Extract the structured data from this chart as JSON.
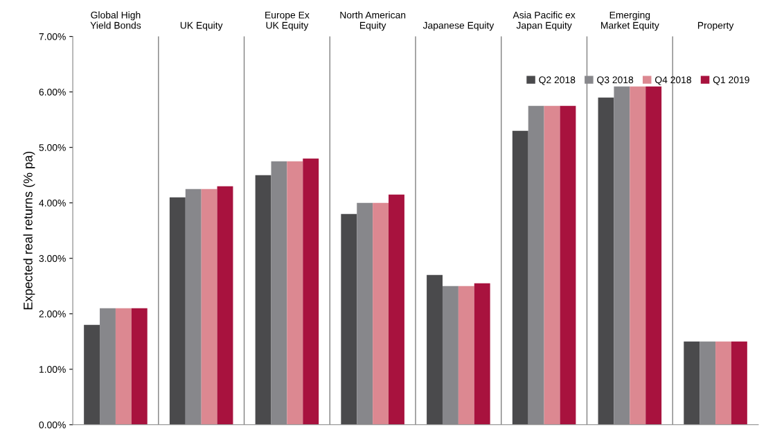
{
  "chart_data": {
    "type": "bar",
    "ylabel": "Expected real returns (% pa)",
    "categories": [
      "Global High Yield Bonds",
      "UK Equity",
      "Europe Ex UK Equity",
      "North American Equity",
      "Japanese Equity",
      "Asia Pacific ex Japan Equity",
      "Emerging Market Equity",
      "Property"
    ],
    "series": [
      {
        "name": "Q2 2018",
        "color": "#4a4a4c",
        "values": [
          1.8,
          4.1,
          4.5,
          3.8,
          2.7,
          5.3,
          5.9,
          1.5
        ]
      },
      {
        "name": "Q3 2018",
        "color": "#87878b",
        "values": [
          2.1,
          4.25,
          4.75,
          4.0,
          2.5,
          5.75,
          6.1,
          1.5
        ]
      },
      {
        "name": "Q4 2018",
        "color": "#dc8891",
        "values": [
          2.1,
          4.25,
          4.75,
          4.0,
          2.5,
          5.75,
          6.1,
          1.5
        ]
      },
      {
        "name": "Q1 2019",
        "color": "#a8123e",
        "values": [
          2.1,
          4.3,
          4.8,
          4.15,
          2.55,
          5.75,
          6.1,
          1.5
        ]
      }
    ],
    "ylim": [
      0,
      7
    ],
    "yticks": [
      {
        "value": 0,
        "label": "0.00%"
      },
      {
        "value": 1,
        "label": "1.00%"
      },
      {
        "value": 2,
        "label": "2.00%"
      },
      {
        "value": 3,
        "label": "3.00%"
      },
      {
        "value": 4,
        "label": "4.00%"
      },
      {
        "value": 5,
        "label": "5.00%"
      },
      {
        "value": 6,
        "label": "6.00%"
      },
      {
        "value": 7,
        "label": "7.00%"
      }
    ],
    "grid": "x",
    "legend": "top right"
  }
}
